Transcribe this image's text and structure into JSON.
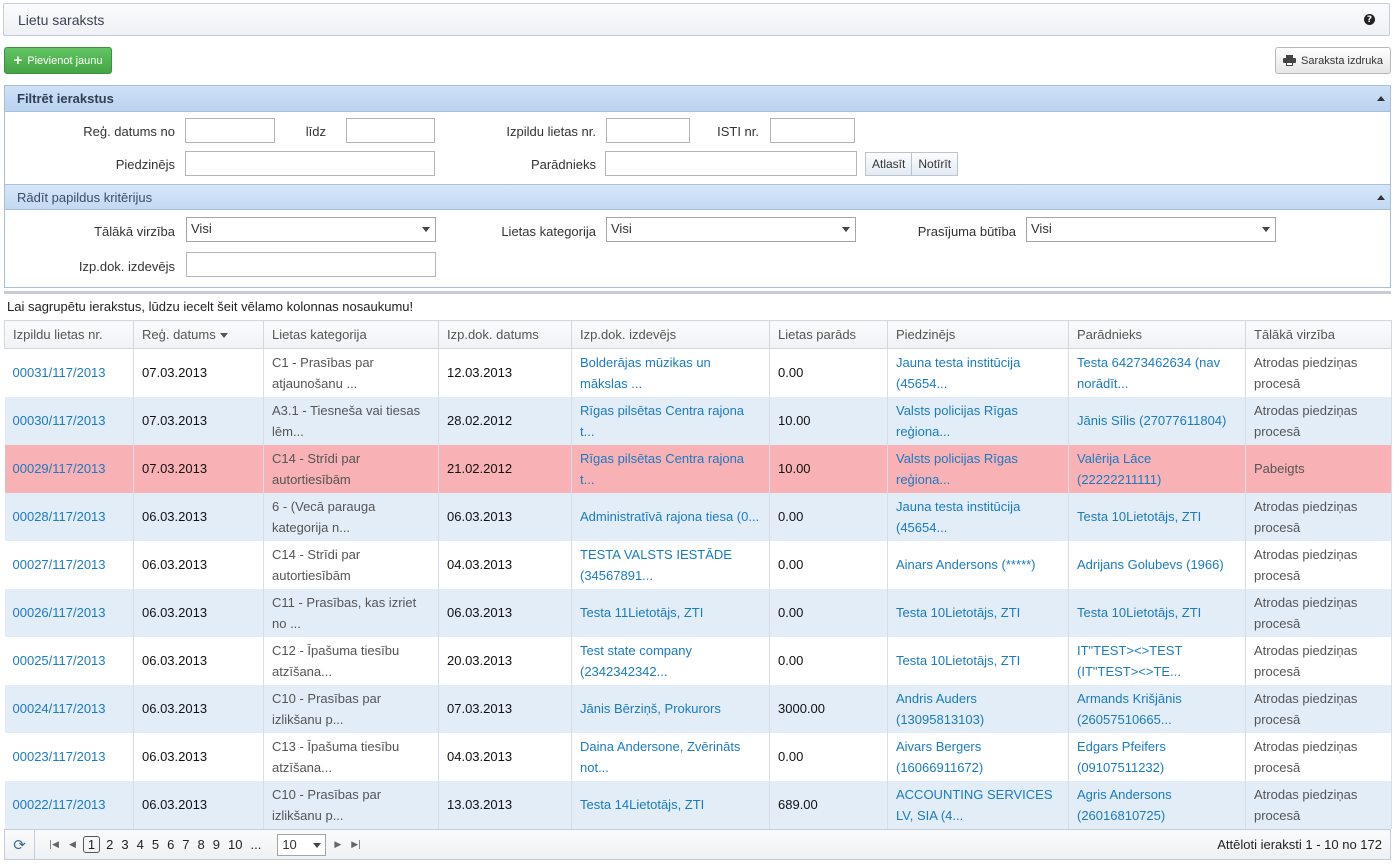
{
  "title": "Lietu saraksts",
  "toolbar": {
    "add_label": "Pievienot jaunu",
    "print_label": "Saraksta izdruka"
  },
  "filter": {
    "title": "Filtrēt ierakstus",
    "reg_date_from_label": "Reģ. datums no",
    "reg_date_to_label": "līdz",
    "case_nr_label": "Izpildu lietas nr.",
    "isti_label": "ISTI nr.",
    "claimant_label": "Piedzinējs",
    "debtor_label": "Parādnieks",
    "apply_label": "Atlasīt",
    "clear_label": "Notīrīt",
    "extra_title": "Rādīt papildus kritērijus",
    "further_label": "Tālākā virzība",
    "further_value": "Visi",
    "category_label": "Lietas kategorija",
    "category_value": "Visi",
    "claim_nature_label": "Prasījuma būtība",
    "claim_nature_value": "Visi",
    "issuer_label": "Izp.dok. izdevējs"
  },
  "group_hint": "Lai sagrupētu ierakstus, lūdzu iecelt šeit vēlamo kolonnas nosaukumu!",
  "columns": [
    "Izpildu lietas nr.",
    "Reģ. datums",
    "Lietas kategorija",
    "Izp.dok. datums",
    "Izp.dok. izdevējs",
    "Lietas parāds",
    "Piedzinējs",
    "Parādnieks",
    "Tālākā virzība"
  ],
  "rows": [
    {
      "nr": "00031/117/2013",
      "reg": "07.03.2013",
      "cat": [
        "C1 - Prasības par",
        "atjaunošanu ..."
      ],
      "doc_date": "12.03.2013",
      "issuer": [
        "Bolderājas mūzikas un",
        "mākslas ..."
      ],
      "debt": "0.00",
      "claimant": [
        "Jauna testa institūcija",
        "(45654..."
      ],
      "debtor": [
        "Testa 64273462634 (nav",
        "norādīt..."
      ],
      "status": [
        "Atrodas piedziņas",
        "procesā"
      ]
    },
    {
      "nr": "00030/117/2013",
      "reg": "07.03.2013",
      "cat": [
        "A3.1 - Tiesneša vai tiesas",
        "lēm..."
      ],
      "doc_date": "28.02.2012",
      "issuer": [
        "Rīgas pilsētas Centra rajona",
        "t..."
      ],
      "debt": "10.00",
      "claimant": [
        "Valsts policijas Rīgas",
        "reģiona..."
      ],
      "debtor": [
        "Jānis Sīlis (27077611804)"
      ],
      "status": [
        "Atrodas piedziņas",
        "procesā"
      ]
    },
    {
      "nr": "00029/117/2013",
      "reg": "07.03.2013",
      "cat": [
        "C14 - Strīdi par",
        "autortiesībām"
      ],
      "doc_date": "21.02.2012",
      "issuer": [
        "Rīgas pilsētas Centra rajona",
        "t..."
      ],
      "debt": "10.00",
      "claimant": [
        "Valsts policijas Rīgas",
        "reģiona..."
      ],
      "debtor": [
        "Valērija Lāce (22222211111)"
      ],
      "status": [
        "Pabeigts"
      ]
    },
    {
      "nr": "00028/117/2013",
      "reg": "06.03.2013",
      "cat": [
        "6 - (Vecā parauga",
        "kategorija n..."
      ],
      "doc_date": "06.03.2013",
      "issuer": [
        "Administratīvā rajona tiesa (0..."
      ],
      "debt": "0.00",
      "claimant": [
        "Jauna testa institūcija",
        "(45654..."
      ],
      "debtor": [
        "Testa 10Lietotājs, ZTI"
      ],
      "status": [
        "Atrodas piedziņas",
        "procesā"
      ]
    },
    {
      "nr": "00027/117/2013",
      "reg": "06.03.2013",
      "cat": [
        "C14 - Strīdi par",
        "autortiesībām"
      ],
      "doc_date": "04.03.2013",
      "issuer": [
        "TESTA VALSTS IESTĀDE",
        "(34567891..."
      ],
      "debt": "0.00",
      "claimant": [
        "Ainars Andersons (*****)"
      ],
      "debtor": [
        "Adrijans Golubevs (1966)"
      ],
      "status": [
        "Atrodas piedziņas",
        "procesā"
      ]
    },
    {
      "nr": "00026/117/2013",
      "reg": "06.03.2013",
      "cat": [
        "C11 - Prasības, kas izriet",
        "no ..."
      ],
      "doc_date": "06.03.2013",
      "issuer": [
        "Testa 11Lietotājs, ZTI"
      ],
      "debt": "0.00",
      "claimant": [
        "Testa 10Lietotājs, ZTI"
      ],
      "debtor": [
        "Testa 10Lietotājs, ZTI"
      ],
      "status": [
        "Atrodas piedziņas",
        "procesā"
      ]
    },
    {
      "nr": "00025/117/2013",
      "reg": "06.03.2013",
      "cat": [
        "C12 - Īpašuma tiesību",
        "atzīšana..."
      ],
      "doc_date": "20.03.2013",
      "issuer": [
        "Test state company",
        "(2342342342..."
      ],
      "debt": "0.00",
      "claimant": [
        "Testa 10Lietotājs, ZTI"
      ],
      "debtor": [
        "IT\"TEST><>TEST",
        "(IT\"TEST><>TE..."
      ],
      "status": [
        "Atrodas piedziņas",
        "procesā"
      ]
    },
    {
      "nr": "00024/117/2013",
      "reg": "06.03.2013",
      "cat": [
        "C10 - Prasības par",
        "izlikšanu p..."
      ],
      "doc_date": "07.03.2013",
      "issuer": [
        "Jānis Bērziņš, Prokurors"
      ],
      "debt": "3000.00",
      "claimant": [
        "Andris Auders",
        "(13095813103)"
      ],
      "debtor": [
        "Armands Krišjānis",
        "(26057510665..."
      ],
      "status": [
        "Atrodas piedziņas",
        "procesā"
      ]
    },
    {
      "nr": "00023/117/2013",
      "reg": "06.03.2013",
      "cat": [
        "C13 - Īpašuma tiesību",
        "atzīšana..."
      ],
      "doc_date": "04.03.2013",
      "issuer": [
        "Daina Andersone, Zvērināts",
        "not..."
      ],
      "debt": "0.00",
      "claimant": [
        "Aivars Bergers",
        "(16066911672)"
      ],
      "debtor": [
        "Edgars Pfeifers",
        "(09107511232)"
      ],
      "status": [
        "Atrodas piedziņas",
        "procesā"
      ]
    },
    {
      "nr": "00022/117/2013",
      "reg": "06.03.2013",
      "cat": [
        "C10 - Prasības par",
        "izlikšanu p..."
      ],
      "doc_date": "13.03.2013",
      "issuer": [
        "Testa 14Lietotājs, ZTI"
      ],
      "debt": "689.00",
      "claimant": [
        "ACCOUNTING SERVICES",
        "LV, SIA (4..."
      ],
      "debtor": [
        "Agris Andersons",
        "(26016810725)"
      ],
      "status": [
        "Atrodas piedziņas",
        "procesā"
      ]
    }
  ],
  "pager": {
    "pages": [
      "1",
      "2",
      "3",
      "4",
      "5",
      "6",
      "7",
      "8",
      "9",
      "10",
      "..."
    ],
    "current_page": "1",
    "page_size": "10",
    "info": "Attēloti ieraksti 1 - 10 no 172"
  }
}
